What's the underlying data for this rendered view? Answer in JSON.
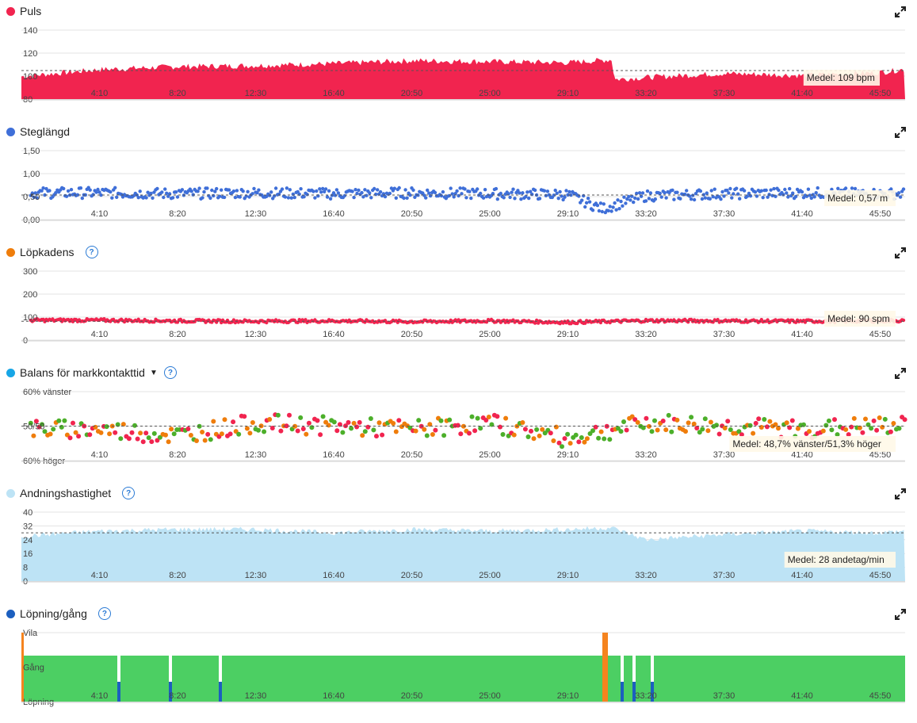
{
  "x_ticks": [
    "4:10",
    "8:20",
    "12:30",
    "16:40",
    "20:50",
    "25:00",
    "29:10",
    "33:20",
    "37:30",
    "41:40",
    "45:50"
  ],
  "panels": [
    {
      "title": "Puls",
      "color": "#f1244f",
      "help": false,
      "mean_label": "Medel: 109 bpm"
    },
    {
      "title": "Steglängd",
      "color": "#3f6fd8",
      "help": false,
      "mean_label": "Medel: 0,57 m"
    },
    {
      "title": "Löpkadens",
      "color": "#ef7d0b",
      "help": true,
      "mean_label": "Medel: 90 spm"
    },
    {
      "title": "Balans för markkontakttid",
      "color": "#17a6e6",
      "help": true,
      "dropdown": true,
      "mean_label": "Medel: 48,7% vänster/51,3% höger"
    },
    {
      "title": "Andningshastighet",
      "color": "#bde3f5",
      "help": true,
      "mean_label": "Medel: 28 andetag/min"
    },
    {
      "title": "Löpning/gång",
      "color": "#1c5fbf",
      "help": true,
      "mean_label": ""
    }
  ],
  "chart_data": [
    {
      "type": "area",
      "title": "Puls",
      "unit": "bpm",
      "y_ticks": [
        "140",
        "120",
        "100",
        "80"
      ],
      "ylim": [
        80,
        150
      ],
      "mean": 109,
      "x": [
        "0:00",
        "4:10",
        "8:20",
        "12:30",
        "16:40",
        "20:50",
        "25:00",
        "29:10",
        "31:30",
        "31:40",
        "33:20",
        "37:30",
        "41:40",
        "45:50",
        "47:00"
      ],
      "values": [
        103,
        110,
        113,
        114,
        116,
        119,
        118,
        117,
        120,
        100,
        102,
        106,
        104,
        107,
        110
      ],
      "color": "#f1244f"
    },
    {
      "type": "scatter",
      "title": "Steglängd",
      "unit": "m",
      "y_ticks": [
        "1,50",
        "1,00",
        "0,50",
        "0,00"
      ],
      "ylim": [
        0,
        1.6
      ],
      "mean": 0.57,
      "x": [
        "4:10",
        "8:20",
        "12:30",
        "16:40",
        "20:50",
        "25:00",
        "29:10",
        "31:00",
        "33:20",
        "37:30",
        "41:40",
        "45:50"
      ],
      "values": [
        0.62,
        0.6,
        0.62,
        0.6,
        0.62,
        0.6,
        0.58,
        0.25,
        0.55,
        0.6,
        0.62,
        0.6
      ],
      "color": "#3f6fd8"
    },
    {
      "type": "scatter",
      "title": "Löpkadens",
      "unit": "spm",
      "y_ticks": [
        "300",
        "200",
        "100",
        "0"
      ],
      "ylim": [
        0,
        330
      ],
      "mean": 90,
      "x": [
        "4:10",
        "8:20",
        "12:30",
        "16:40",
        "20:50",
        "25:00",
        "29:10",
        "33:20",
        "37:30",
        "41:40",
        "45:50"
      ],
      "values": [
        95,
        92,
        90,
        92,
        88,
        92,
        85,
        93,
        92,
        90,
        93
      ],
      "color": "#f1244f"
    },
    {
      "type": "scatter",
      "title": "Balans för markkontakttid",
      "y_ticks": [
        "60% vänster",
        "50/50",
        "60% höger"
      ],
      "ylim": [
        -11,
        11
      ],
      "mean": 48.7,
      "x": [
        "4:10",
        "8:20",
        "12:30",
        "16:40",
        "20:50",
        "25:00",
        "29:10",
        "33:20",
        "37:30",
        "41:40",
        "45:50"
      ],
      "values": [
        -1,
        -3,
        1,
        0,
        -1,
        1,
        -4,
        1,
        0,
        -1,
        0
      ],
      "colors": [
        "#f1244f",
        "#ef7d0b",
        "#4caf2a"
      ]
    },
    {
      "type": "area",
      "title": "Andningshastighet",
      "unit": "andetag/min",
      "y_ticks": [
        "40",
        "32",
        "24",
        "16",
        "8",
        "0"
      ],
      "ylim": [
        0,
        40
      ],
      "mean": 28,
      "x": [
        "0:00",
        "4:10",
        "8:20",
        "12:30",
        "16:40",
        "20:50",
        "25:00",
        "29:10",
        "31:30",
        "33:20",
        "37:30",
        "41:40",
        "45:50",
        "47:00"
      ],
      "values": [
        26,
        29,
        30,
        30,
        28,
        30,
        29,
        30,
        31,
        24,
        27,
        29,
        28,
        29
      ],
      "color": "#bde3f5"
    },
    {
      "type": "bar",
      "title": "Löpning/gång",
      "y_ticks": [
        "Vila",
        "Gång",
        "Löpning"
      ],
      "categories": [
        "Vila",
        "Gång",
        "Löpning"
      ],
      "colors": {
        "Vila": "#f5841f",
        "Gång": "#4ccf63",
        "Löpning": "#1c5fbf"
      }
    }
  ]
}
